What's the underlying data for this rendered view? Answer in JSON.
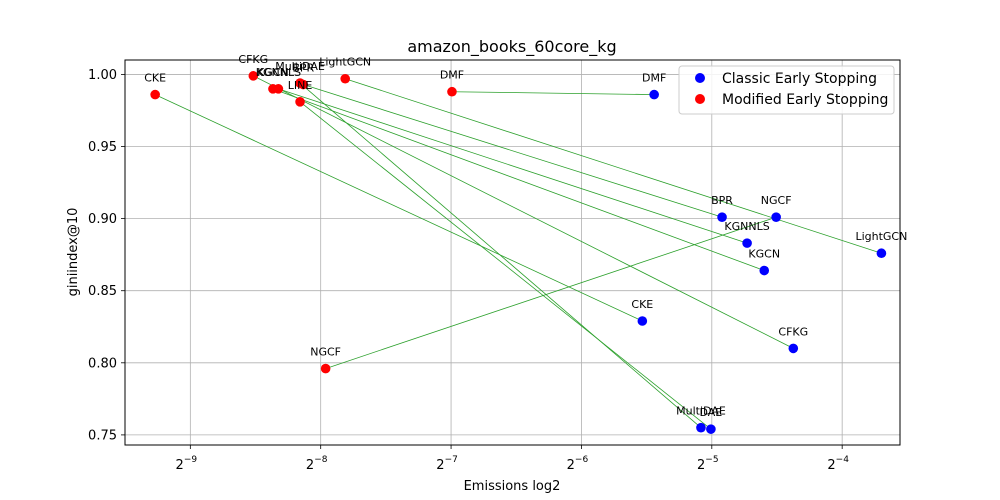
{
  "chart_data": {
    "type": "scatter",
    "title": "amazon_books_60core_kg",
    "xlabel": "Emissions log2",
    "ylabel": "giniindex@10",
    "xscale": "log2",
    "xlim": [
      0.00138,
      0.085
    ],
    "ylim": [
      0.743,
      1.01
    ],
    "xticks": [
      {
        "value": 0.001953125,
        "base": "2",
        "exp": "−9"
      },
      {
        "value": 0.00390625,
        "base": "2",
        "exp": "−8"
      },
      {
        "value": 0.0078125,
        "base": "2",
        "exp": "−7"
      },
      {
        "value": 0.015625,
        "base": "2",
        "exp": "−6"
      },
      {
        "value": 0.03125,
        "base": "2",
        "exp": "−5"
      },
      {
        "value": 0.0625,
        "base": "2",
        "exp": "−4"
      }
    ],
    "yticks": [
      {
        "value": 0.75,
        "label": "0.75"
      },
      {
        "value": 0.8,
        "label": "0.80"
      },
      {
        "value": 0.85,
        "label": "0.85"
      },
      {
        "value": 0.9,
        "label": "0.90"
      },
      {
        "value": 0.95,
        "label": "0.95"
      },
      {
        "value": 1.0,
        "label": "1.00"
      }
    ],
    "grid": true,
    "legend_position": "top-right",
    "connector_color": "#2ca02c",
    "series": [
      {
        "name": "Classic Early Stopping",
        "color": "#0000ff",
        "points": [
          {
            "label": "DMF",
            "x": 0.023,
            "y": 0.986
          },
          {
            "label": "BPR",
            "x": 0.033,
            "y": 0.901
          },
          {
            "label": "NGCF",
            "x": 0.044,
            "y": 0.901
          },
          {
            "label": "LightGCN",
            "x": 0.077,
            "y": 0.876
          },
          {
            "label": "KGNNLS",
            "x": 0.0377,
            "y": 0.883
          },
          {
            "label": "KGCN",
            "x": 0.0413,
            "y": 0.864
          },
          {
            "label": "CKE",
            "x": 0.0216,
            "y": 0.829
          },
          {
            "label": "CFKG",
            "x": 0.0482,
            "y": 0.81
          },
          {
            "label": "MultiDAE",
            "x": 0.0295,
            "y": 0.755
          },
          {
            "label": "DAE",
            "x": 0.0311,
            "y": 0.754
          }
        ]
      },
      {
        "name": "Modified Early Stopping",
        "color": "#ff0000",
        "points": [
          {
            "label": "CKE",
            "x": 0.00162,
            "y": 0.986
          },
          {
            "label": "CFKG",
            "x": 0.00273,
            "y": 0.999
          },
          {
            "label": "KGCN",
            "x": 0.00303,
            "y": 0.99
          },
          {
            "label": "KGNNLS",
            "x": 0.00312,
            "y": 0.99
          },
          {
            "label": "MultiDAE",
            "x": 0.0035,
            "y": 0.994
          },
          {
            "label": "BPR",
            "x": 0.00356,
            "y": 0.993
          },
          {
            "label": "LINE",
            "x": 0.0035,
            "y": 0.981
          },
          {
            "label": "LightGCN",
            "x": 0.00445,
            "y": 0.997
          },
          {
            "label": "DMF",
            "x": 0.00785,
            "y": 0.988
          },
          {
            "label": "NGCF",
            "x": 0.00401,
            "y": 0.796
          }
        ]
      }
    ],
    "connections": [
      {
        "from": "DMF",
        "to": "DMF"
      },
      {
        "from": "CKE",
        "to": "CKE"
      },
      {
        "from": "CFKG",
        "to": "CFKG"
      },
      {
        "from": "KGCN",
        "to": "KGCN"
      },
      {
        "from": "KGNNLS",
        "to": "KGNNLS"
      },
      {
        "from": "MultiDAE",
        "to": "MultiDAE"
      },
      {
        "from": "BPR",
        "to": "BPR"
      },
      {
        "from": "LINE",
        "to": "DAE"
      },
      {
        "from": "LightGCN",
        "to": "LightGCN"
      },
      {
        "from": "NGCF",
        "to": "NGCF"
      }
    ]
  }
}
